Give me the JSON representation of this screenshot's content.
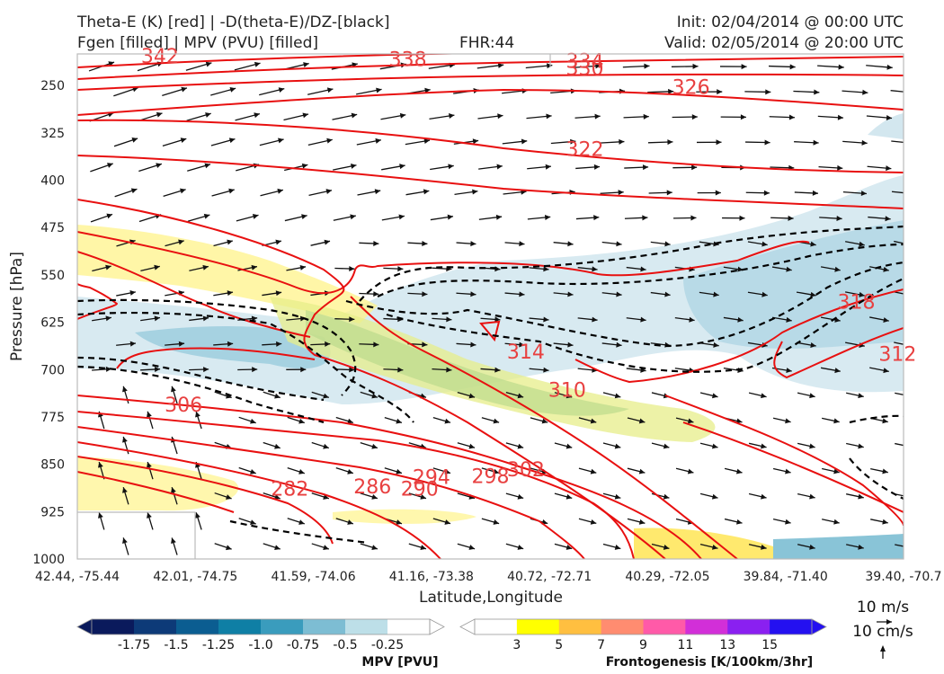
{
  "header": {
    "title_line1": "Theta-E (K) [red] | -D(theta-E)/DZ-[black]",
    "title_line2": "Fgen [filled] | MPV (PVU) [filled]",
    "fhr": "FHR:44",
    "init": "Init: 02/04/2014 @ 00:00 UTC",
    "valid": "Valid: 02/05/2014 @ 20:00 UTC"
  },
  "colors": {
    "theta_e": "#e81010",
    "stability": "#000000",
    "mpv_fill": "#a8d0e0",
    "fgen_fill": "#fff38a",
    "vectors": "#111111"
  },
  "chart_data": {
    "type": "cross-section",
    "xlabel": "Latitude,Longitude",
    "ylabel": "Pressure [hPa]",
    "x_ticks": [
      "42.44, -75.44",
      "42.01, -74.75",
      "41.59, -74.06",
      "41.16, -73.38",
      "40.72, -72.71",
      "40.29, -72.05",
      "39.84, -71.40",
      "39.40, -70.7"
    ],
    "y_ticks": [
      250,
      325,
      400,
      475,
      550,
      625,
      700,
      775,
      850,
      925,
      1000
    ],
    "ylim": [
      1000,
      200
    ],
    "theta_e_labels": [
      {
        "text": "342",
        "x": 0.7,
        "p": 203
      },
      {
        "text": "338",
        "x": 2.8,
        "p": 208
      },
      {
        "text": "334",
        "x": 4.3,
        "p": 211
      },
      {
        "text": "330",
        "x": 4.3,
        "p": 222
      },
      {
        "text": "326",
        "x": 5.2,
        "p": 252
      },
      {
        "text": "322",
        "x": 4.3,
        "p": 350
      },
      {
        "text": "318",
        "x": 6.6,
        "p": 592
      },
      {
        "text": "314",
        "x": 3.8,
        "p": 671
      },
      {
        "text": "312",
        "x": 6.95,
        "p": 675
      },
      {
        "text": "310",
        "x": 4.15,
        "p": 732
      },
      {
        "text": "306",
        "x": 0.9,
        "p": 755
      },
      {
        "text": "302",
        "x": 3.8,
        "p": 858
      },
      {
        "text": "298",
        "x": 3.5,
        "p": 868
      },
      {
        "text": "294",
        "x": 3.0,
        "p": 870
      },
      {
        "text": "290",
        "x": 2.9,
        "p": 888
      },
      {
        "text": "286",
        "x": 2.5,
        "p": 885
      },
      {
        "text": "282",
        "x": 1.8,
        "p": 888
      }
    ],
    "vector_scale_labels": [
      "10 m/s",
      "10 cm/s"
    ],
    "colorbars": [
      {
        "label": "MPV [PVU]",
        "ticks": [
          "-1.75",
          "-1.5",
          "-1.25",
          "-1.0",
          "-0.75",
          "-0.5",
          "-0.25"
        ],
        "colors": [
          "#0a1a5c",
          "#0d3a78",
          "#0b5d91",
          "#0f7fa5",
          "#3a9cbd",
          "#7dbdd3",
          "#bddfe8",
          "#ffffff"
        ]
      },
      {
        "label": "Frontogenesis [K/100km/3hr]",
        "ticks": [
          "3",
          "5",
          "7",
          "9",
          "11",
          "13",
          "15"
        ],
        "colors": [
          "#ffffff",
          "#ffff00",
          "#ffbf40",
          "#ff8c70",
          "#ff5aa8",
          "#d22fd8",
          "#8a20f0",
          "#2410f0"
        ]
      }
    ]
  }
}
